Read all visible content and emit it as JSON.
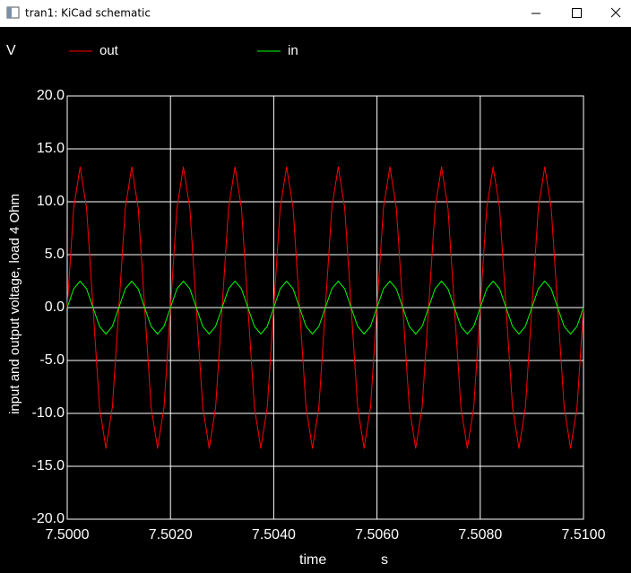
{
  "window": {
    "title": "tran1: KiCad schematic"
  },
  "chart_data": {
    "type": "line",
    "y_unit": "V",
    "y_label": "input and output voltage, load 4 Ohm",
    "x_label": "time",
    "x_unit": "s",
    "x": [
      7.5,
      7.500125,
      7.50025,
      7.500375,
      7.5005,
      7.500625,
      7.50075,
      7.500875,
      7.501,
      7.501125,
      7.50125,
      7.501375,
      7.5015,
      7.501625,
      7.50175,
      7.501875,
      7.502,
      7.502125,
      7.50225,
      7.502375,
      7.5025,
      7.502625,
      7.50275,
      7.502875,
      7.503,
      7.503125,
      7.50325,
      7.503375,
      7.5035,
      7.503625,
      7.50375,
      7.503875,
      7.504,
      7.504125,
      7.50425,
      7.504375,
      7.5045,
      7.504625,
      7.50475,
      7.504875,
      7.505,
      7.505125,
      7.50525,
      7.505375,
      7.5055,
      7.505625,
      7.50575,
      7.505875,
      7.506,
      7.506125,
      7.50625,
      7.506375,
      7.5065,
      7.506625,
      7.50675,
      7.506875,
      7.507,
      7.507125,
      7.50725,
      7.507375,
      7.5075,
      7.507625,
      7.50775,
      7.507875,
      7.508,
      7.508125,
      7.50825,
      7.508375,
      7.5085,
      7.508625,
      7.50875,
      7.508875,
      7.509,
      7.509125,
      7.50925,
      7.509375,
      7.5095,
      7.509625,
      7.50975,
      7.509875,
      7.51
    ],
    "series": [
      {
        "name": "out",
        "color": "#ff0000",
        "values": [
          0,
          9.4,
          13.3,
          9.4,
          0,
          -9.4,
          -13.3,
          -9.4,
          0,
          9.4,
          13.3,
          9.4,
          0,
          -9.4,
          -13.3,
          -9.4,
          0,
          9.4,
          13.3,
          9.4,
          0,
          -9.4,
          -13.3,
          -9.4,
          0,
          9.4,
          13.3,
          9.4,
          0,
          -9.4,
          -13.3,
          -9.4,
          0,
          9.4,
          13.3,
          9.4,
          0,
          -9.4,
          -13.3,
          -9.4,
          0,
          9.4,
          13.3,
          9.4,
          0,
          -9.4,
          -13.3,
          -9.4,
          0,
          9.4,
          13.3,
          9.4,
          0,
          -9.4,
          -13.3,
          -9.4,
          0,
          9.4,
          13.3,
          9.4,
          0,
          -9.4,
          -13.3,
          -9.4,
          0,
          9.4,
          13.3,
          9.4,
          0,
          -9.4,
          -13.3,
          -9.4,
          0,
          9.4,
          13.3,
          9.4,
          0,
          -9.4,
          -13.3,
          -9.4,
          0
        ]
      },
      {
        "name": "in",
        "color": "#00ff00",
        "values": [
          0,
          1.77,
          2.5,
          1.77,
          0,
          -1.77,
          -2.5,
          -1.77,
          0,
          1.77,
          2.5,
          1.77,
          0,
          -1.77,
          -2.5,
          -1.77,
          0,
          1.77,
          2.5,
          1.77,
          0,
          -1.77,
          -2.5,
          -1.77,
          0,
          1.77,
          2.5,
          1.77,
          0,
          -1.77,
          -2.5,
          -1.77,
          0,
          1.77,
          2.5,
          1.77,
          0,
          -1.77,
          -2.5,
          -1.77,
          0,
          1.77,
          2.5,
          1.77,
          0,
          -1.77,
          -2.5,
          -1.77,
          0,
          1.77,
          2.5,
          1.77,
          0,
          -1.77,
          -2.5,
          -1.77,
          0,
          1.77,
          2.5,
          1.77,
          0,
          -1.77,
          -2.5,
          -1.77,
          0,
          1.77,
          2.5,
          1.77,
          0,
          -1.77,
          -2.5,
          -1.77,
          0,
          1.77,
          2.5,
          1.77,
          0,
          -1.77,
          -2.5,
          -1.77,
          0
        ]
      }
    ],
    "xlim": [
      7.5,
      7.51
    ],
    "xticks": [
      {
        "value": 7.5,
        "label": "7.5000"
      },
      {
        "value": 7.502,
        "label": "7.5020"
      },
      {
        "value": 7.504,
        "label": "7.5040"
      },
      {
        "value": 7.506,
        "label": "7.5060"
      },
      {
        "value": 7.508,
        "label": "7.5080"
      },
      {
        "value": 7.51,
        "label": "7.5100"
      }
    ],
    "ylim": [
      -20,
      20
    ],
    "yticks": [
      {
        "value": 20,
        "label": "20.0"
      },
      {
        "value": 15,
        "label": "15.0"
      },
      {
        "value": 10,
        "label": "10.0"
      },
      {
        "value": 5,
        "label": "5.0"
      },
      {
        "value": 0,
        "label": "0.0"
      },
      {
        "value": -5,
        "label": "-5.0"
      },
      {
        "value": -10,
        "label": "-10.0"
      },
      {
        "value": -15,
        "label": "-15.0"
      },
      {
        "value": -20,
        "label": "-20.0"
      }
    ],
    "grid": true
  }
}
